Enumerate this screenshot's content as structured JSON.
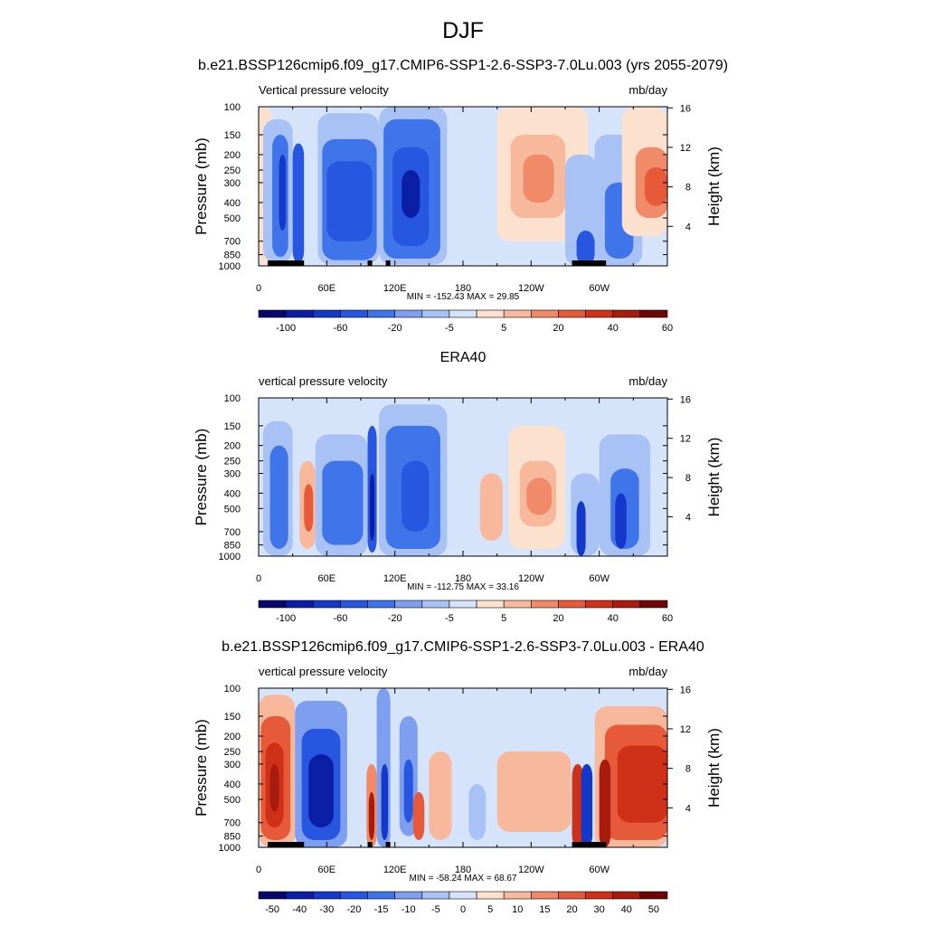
{
  "main_title": "DJF",
  "colors": {
    "model_scale": [
      "#06066e",
      "#0b1ea6",
      "#1438c9",
      "#2757e0",
      "#3f74ea",
      "#7e9ef0",
      "#a9c2f5",
      "#d5e4fb",
      "#fde1cf",
      "#f8b89b",
      "#f08a68",
      "#e65a3a",
      "#cf3018",
      "#a81c0d",
      "#6e0606"
    ],
    "diff_scale": [
      "#06066e",
      "#0b1ea6",
      "#1438c9",
      "#2757e0",
      "#3f74ea",
      "#7e9ef0",
      "#a9c2f5",
      "#d5e4fb",
      "#fde1cf",
      "#f8b89b",
      "#f08a68",
      "#e65a3a",
      "#cf3018",
      "#a81c0d",
      "#6e0606"
    ],
    "land": "#000000"
  },
  "chart_data": [
    {
      "type": "heatmap",
      "title": "b.e21.BSSP126cmip6.f09_g17.CMIP6-SSP1-2.6-SSP3-7.0Lu.003 (yrs 2055-2079)",
      "left_label": "Vertical pressure velocity",
      "right_label": "mb/day",
      "xlabel": "",
      "ylabel": "Pressure (mb)",
      "ylabel_right": "Height (km)",
      "x_ticks": [
        "0",
        "60E",
        "120E",
        "180",
        "120W",
        "60W"
      ],
      "x_tick_lons": [
        0,
        60,
        120,
        180,
        240,
        300
      ],
      "xlim": [
        0,
        360
      ],
      "y_ticks": [
        100,
        150,
        200,
        250,
        300,
        400,
        500,
        700,
        850,
        1000
      ],
      "ylim": [
        1000,
        100
      ],
      "y_scale": "log",
      "right_ticks": [
        4,
        8,
        12,
        16
      ],
      "stats": "MIN = -152.43  MAX =  29.85",
      "colorbar_labels": [
        "-100",
        "-60",
        "-20",
        "-5",
        "5",
        "20",
        "40",
        "60"
      ],
      "field": [
        {
          "lon": [
            0,
            12
          ],
          "p": [
            1000,
            100
          ],
          "level": 8
        },
        {
          "lon": [
            4,
            30
          ],
          "p": [
            950,
            120
          ],
          "level": 6
        },
        {
          "lon": [
            12,
            26
          ],
          "p": [
            880,
            150
          ],
          "level": 4
        },
        {
          "lon": [
            18,
            24
          ],
          "p": [
            600,
            200
          ],
          "level": 2
        },
        {
          "lon": [
            30,
            40
          ],
          "p": [
            960,
            170
          ],
          "level": 3
        },
        {
          "lon": [
            42,
            52
          ],
          "p": [
            1000,
            110
          ],
          "level": 7
        },
        {
          "lon": [
            52,
            106
          ],
          "p": [
            980,
            110
          ],
          "level": 6
        },
        {
          "lon": [
            56,
            104
          ],
          "p": [
            920,
            160
          ],
          "level": 4
        },
        {
          "lon": [
            60,
            100
          ],
          "p": [
            700,
            220
          ],
          "level": 3
        },
        {
          "lon": [
            106,
            166
          ],
          "p": [
            980,
            100
          ],
          "level": 6
        },
        {
          "lon": [
            110,
            160
          ],
          "p": [
            900,
            120
          ],
          "level": 4
        },
        {
          "lon": [
            118,
            150
          ],
          "p": [
            750,
            180
          ],
          "level": 3
        },
        {
          "lon": [
            126,
            142
          ],
          "p": [
            500,
            250
          ],
          "level": 1
        },
        {
          "lon": [
            166,
            205
          ],
          "p": [
            900,
            110
          ],
          "level": 7
        },
        {
          "lon": [
            210,
            290
          ],
          "p": [
            700,
            100
          ],
          "level": 8
        },
        {
          "lon": [
            222,
            270
          ],
          "p": [
            500,
            150
          ],
          "level": 9
        },
        {
          "lon": [
            233,
            260
          ],
          "p": [
            400,
            200
          ],
          "level": 10
        },
        {
          "lon": [
            270,
            298
          ],
          "p": [
            1000,
            200
          ],
          "level": 6
        },
        {
          "lon": [
            280,
            296
          ],
          "p": [
            1000,
            600
          ],
          "level": 3
        },
        {
          "lon": [
            296,
            338
          ],
          "p": [
            1000,
            150
          ],
          "level": 6
        },
        {
          "lon": [
            305,
            330
          ],
          "p": [
            900,
            300
          ],
          "level": 4
        },
        {
          "lon": [
            320,
            360
          ],
          "p": [
            650,
            100
          ],
          "level": 8
        },
        {
          "lon": [
            332,
            360
          ],
          "p": [
            500,
            180
          ],
          "level": 10
        },
        {
          "lon": [
            340,
            360
          ],
          "p": [
            420,
            240
          ],
          "level": 11
        }
      ],
      "land": [
        [
          8,
          40
        ],
        [
          96,
          100
        ],
        [
          112,
          116
        ],
        [
          276,
          306
        ]
      ]
    },
    {
      "type": "heatmap",
      "title": "ERA40",
      "left_label": "vertical pressure velocity",
      "right_label": "mb/day",
      "xlabel": "",
      "ylabel": "Pressure (mb)",
      "ylabel_right": "Height (km)",
      "x_ticks": [
        "0",
        "60E",
        "120E",
        "180",
        "120W",
        "60W"
      ],
      "x_tick_lons": [
        0,
        60,
        120,
        180,
        240,
        300
      ],
      "xlim": [
        0,
        360
      ],
      "y_ticks": [
        100,
        150,
        200,
        250,
        300,
        400,
        500,
        700,
        850,
        1000
      ],
      "ylim": [
        1000,
        100
      ],
      "y_scale": "log",
      "right_ticks": [
        4,
        8,
        12,
        16
      ],
      "stats": "MIN = -112.75  MAX =  33.16",
      "colorbar_labels": [
        "-100",
        "-60",
        "-20",
        "-5",
        "5",
        "20",
        "40",
        "60"
      ],
      "field": [
        {
          "lon": [
            4,
            30
          ],
          "p": [
            1000,
            140
          ],
          "level": 6
        },
        {
          "lon": [
            10,
            26
          ],
          "p": [
            900,
            200
          ],
          "level": 4
        },
        {
          "lon": [
            36,
            50
          ],
          "p": [
            900,
            250
          ],
          "level": 9
        },
        {
          "lon": [
            40,
            48
          ],
          "p": [
            700,
            350
          ],
          "level": 11
        },
        {
          "lon": [
            50,
            96
          ],
          "p": [
            1000,
            170
          ],
          "level": 6
        },
        {
          "lon": [
            56,
            92
          ],
          "p": [
            850,
            250
          ],
          "level": 4
        },
        {
          "lon": [
            96,
            104
          ],
          "p": [
            950,
            150
          ],
          "level": 3
        },
        {
          "lon": [
            98,
            102
          ],
          "p": [
            800,
            300
          ],
          "level": 1
        },
        {
          "lon": [
            106,
            166
          ],
          "p": [
            1000,
            110
          ],
          "level": 6
        },
        {
          "lon": [
            112,
            160
          ],
          "p": [
            900,
            150
          ],
          "level": 4
        },
        {
          "lon": [
            126,
            150
          ],
          "p": [
            700,
            250
          ],
          "level": 3
        },
        {
          "lon": [
            195,
            215
          ],
          "p": [
            800,
            300
          ],
          "level": 9
        },
        {
          "lon": [
            220,
            270
          ],
          "p": [
            900,
            150
          ],
          "level": 8
        },
        {
          "lon": [
            230,
            262
          ],
          "p": [
            650,
            250
          ],
          "level": 9
        },
        {
          "lon": [
            236,
            258
          ],
          "p": [
            550,
            320
          ],
          "level": 10
        },
        {
          "lon": [
            275,
            300
          ],
          "p": [
            1000,
            300
          ],
          "level": 6
        },
        {
          "lon": [
            280,
            288
          ],
          "p": [
            1000,
            450
          ],
          "level": 2
        },
        {
          "lon": [
            300,
            345
          ],
          "p": [
            1000,
            170
          ],
          "level": 6
        },
        {
          "lon": [
            310,
            335
          ],
          "p": [
            900,
            280
          ],
          "level": 4
        },
        {
          "lon": [
            314,
            324
          ],
          "p": [
            900,
            400
          ],
          "level": 2
        }
      ],
      "land": []
    },
    {
      "type": "heatmap",
      "title": "b.e21.BSSP126cmip6.f09_g17.CMIP6-SSP1-2.6-SSP3-7.0Lu.003 - ERA40",
      "left_label": "vertical pressure velocity",
      "right_label": "mb/day",
      "xlabel": "",
      "ylabel": "Pressure (mb)",
      "ylabel_right": "Height (km)",
      "x_ticks": [
        "0",
        "60E",
        "120E",
        "180",
        "120W",
        "60W"
      ],
      "x_tick_lons": [
        0,
        60,
        120,
        180,
        240,
        300
      ],
      "xlim": [
        0,
        360
      ],
      "y_ticks": [
        100,
        150,
        200,
        250,
        300,
        400,
        500,
        700,
        850,
        1000
      ],
      "ylim": [
        1000,
        100
      ],
      "y_scale": "log",
      "right_ticks": [
        4,
        8,
        12,
        16
      ],
      "stats": "MIN = -58.24  MAX =  68.67",
      "colorbar_labels": [
        "-50",
        "-40",
        "-30",
        "-20",
        "-15",
        "-10",
        "-5",
        "0",
        "5",
        "10",
        "15",
        "20",
        "30",
        "40",
        "50"
      ],
      "field": [
        {
          "lon": [
            0,
            32
          ],
          "p": [
            1000,
            110
          ],
          "level": 9
        },
        {
          "lon": [
            2,
            28
          ],
          "p": [
            900,
            150
          ],
          "level": 11
        },
        {
          "lon": [
            6,
            22
          ],
          "p": [
            750,
            220
          ],
          "level": 12
        },
        {
          "lon": [
            10,
            18
          ],
          "p": [
            600,
            300
          ],
          "level": 13
        },
        {
          "lon": [
            32,
            78
          ],
          "p": [
            1000,
            120
          ],
          "level": 5
        },
        {
          "lon": [
            38,
            72
          ],
          "p": [
            900,
            180
          ],
          "level": 3
        },
        {
          "lon": [
            44,
            66
          ],
          "p": [
            750,
            260
          ],
          "level": 1
        },
        {
          "lon": [
            95,
            104
          ],
          "p": [
            1000,
            300
          ],
          "level": 10
        },
        {
          "lon": [
            97,
            102
          ],
          "p": [
            900,
            450
          ],
          "level": 13
        },
        {
          "lon": [
            104,
            116
          ],
          "p": [
            1000,
            100
          ],
          "level": 5
        },
        {
          "lon": [
            108,
            114
          ],
          "p": [
            900,
            300
          ],
          "level": 2
        },
        {
          "lon": [
            124,
            140
          ],
          "p": [
            850,
            150
          ],
          "level": 5
        },
        {
          "lon": [
            128,
            136
          ],
          "p": [
            700,
            280
          ],
          "level": 3
        },
        {
          "lon": [
            136,
            146
          ],
          "p": [
            900,
            450
          ],
          "level": 11
        },
        {
          "lon": [
            150,
            170
          ],
          "p": [
            900,
            250
          ],
          "level": 9
        },
        {
          "lon": [
            185,
            200
          ],
          "p": [
            900,
            400
          ],
          "level": 6
        },
        {
          "lon": [
            210,
            275
          ],
          "p": [
            800,
            250
          ],
          "level": 9
        },
        {
          "lon": [
            276,
            286
          ],
          "p": [
            1000,
            300
          ],
          "level": 12
        },
        {
          "lon": [
            284,
            294
          ],
          "p": [
            1000,
            300
          ],
          "level": 2
        },
        {
          "lon": [
            296,
            360
          ],
          "p": [
            1000,
            130
          ],
          "level": 9
        },
        {
          "lon": [
            305,
            360
          ],
          "p": [
            900,
            170
          ],
          "level": 11
        },
        {
          "lon": [
            316,
            360
          ],
          "p": [
            700,
            230
          ],
          "level": 12
        },
        {
          "lon": [
            300,
            310
          ],
          "p": [
            1000,
            280
          ],
          "level": 13
        }
      ],
      "land": [
        [
          8,
          40
        ],
        [
          96,
          100
        ],
        [
          112,
          116
        ],
        [
          276,
          306
        ]
      ]
    }
  ]
}
